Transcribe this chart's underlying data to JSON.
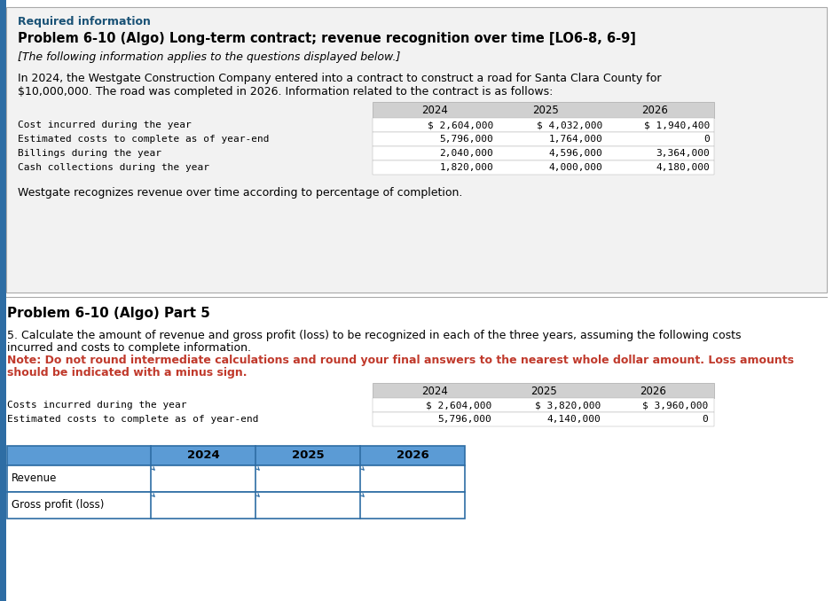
{
  "page_bg": "#ffffff",
  "blue_accent": "#2e6da4",
  "teal_header": "#1a5276",
  "red_text": "#c0392b",
  "section_bg": "#f0f0f0",
  "section_border": "#888888",
  "table1_header_bg": "#d0d0d0",
  "table2_header_bg": "#d0d0d0",
  "table3_header_bg": "#5b9bd5",
  "table3_row_sep": "#2e6da4",
  "mono_font": "DejaVu Sans Mono",
  "sans_font": "DejaVu Sans",
  "required_info_text": "Required information",
  "title_text": "Problem 6-10 (Algo) Long-term contract; revenue recognition over time [LO6-8, 6-9]",
  "subtitle_text": "[The following information applies to the questions displayed below.]",
  "intro_line1": "In 2024, the Westgate Construction Company entered into a contract to construct a road for Santa Clara County for",
  "intro_line2": "$10,000,000. The road was completed in 2026. Information related to the contract is as follows:",
  "table1_rows": [
    "Cost incurred during the year",
    "Estimated costs to complete as of year-end",
    "Billings during the year",
    "Cash collections during the year"
  ],
  "table1_years": [
    "2024",
    "2025",
    "2026"
  ],
  "table1_data": [
    [
      "$ 2,604,000",
      "$ 4,032,000",
      "$ 1,940,400"
    ],
    [
      "5,796,000",
      "1,764,000",
      "0"
    ],
    [
      "2,040,000",
      "4,596,000",
      "3,364,000"
    ],
    [
      "1,820,000",
      "4,000,000",
      "4,180,000"
    ]
  ],
  "recognition_text": "Westgate recognizes revenue over time according to percentage of completion.",
  "part5_title": "Problem 6-10 (Algo) Part 5",
  "part5_line1": "5. Calculate the amount of revenue and gross profit (loss) to be recognized in each of the three years, assuming the following costs",
  "part5_line2": "incurred and costs to complete information.",
  "note_line1": "Note: Do not round intermediate calculations and round your final answers to the nearest whole dollar amount. Loss amounts",
  "note_line2": "should be indicated with a minus sign.",
  "table2_rows": [
    "Costs incurred during the year",
    "Estimated costs to complete as of year-end"
  ],
  "table2_years": [
    "2024",
    "2025",
    "2026"
  ],
  "table2_data": [
    [
      "$ 2,604,000",
      "$ 3,820,000",
      "$ 3,960,000"
    ],
    [
      "5,796,000",
      "4,140,000",
      "0"
    ]
  ],
  "table3_row_labels": [
    "Revenue",
    "Gross profit (loss)"
  ],
  "table3_years": [
    "2024",
    "2025",
    "2026"
  ]
}
